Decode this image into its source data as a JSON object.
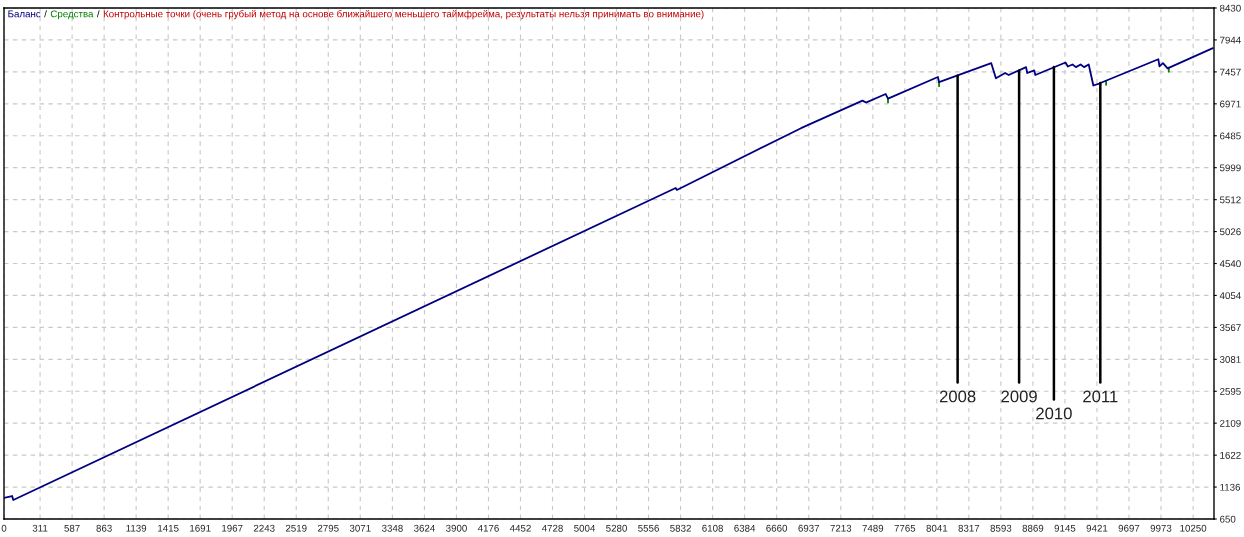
{
  "chart_data": {
    "type": "line",
    "title": "Контрольные точки (очень грубый метод на основе ближайшего меньшего таймфрейма, результаты нельзя принимать во внимание)",
    "series": [
      {
        "name": "Баланс",
        "color": "#000080",
        "x": [
          0,
          70,
          80,
          5790,
          5800,
          6870,
          7400,
          7430,
          7600,
          7620,
          8050,
          8060,
          8510,
          8550,
          8630,
          8660,
          8810,
          8820,
          8880,
          8890,
          9150,
          9170,
          9210,
          9240,
          9280,
          9310,
          9350,
          9390,
          9440,
          9950,
          9960,
          9990,
          10030,
          10420
        ],
        "values": [
          970,
          1000,
          940,
          5690,
          5660,
          6600,
          7020,
          6990,
          7120,
          7050,
          7380,
          7300,
          7590,
          7360,
          7440,
          7410,
          7530,
          7440,
          7480,
          7410,
          7600,
          7540,
          7570,
          7530,
          7570,
          7530,
          7570,
          7250,
          7280,
          7650,
          7540,
          7590,
          7510,
          7820
        ]
      },
      {
        "name": "Средства",
        "color": "#008000",
        "x": [
          7620,
          7620,
          null,
          8060,
          8060,
          null,
          9500,
          9500,
          null,
          10040,
          10040
        ],
        "values": [
          7050,
          6990,
          null,
          7300,
          7240,
          null,
          7320,
          7260,
          null,
          7520,
          7460
        ]
      }
    ],
    "xlim": [
      0,
      10430
    ],
    "xticks": [
      0,
      311,
      587,
      863,
      1139,
      1415,
      1691,
      1967,
      2243,
      2519,
      2795,
      3071,
      3348,
      3624,
      3900,
      4176,
      4452,
      4728,
      5004,
      5280,
      5556,
      5832,
      6108,
      6384,
      6660,
      6937,
      7213,
      7489,
      7765,
      8041,
      8317,
      8593,
      8869,
      9145,
      9421,
      9697,
      9973,
      10250
    ],
    "ylim": [
      650,
      8430
    ],
    "yticks": [
      650,
      1136,
      1622,
      2109,
      2595,
      3081,
      3567,
      4054,
      4540,
      5026,
      5512,
      5999,
      6485,
      6971,
      7457,
      7944,
      8430
    ],
    "grid": true,
    "legend": "top left",
    "line_style": "solid",
    "annotations": [
      "/",
      "/",
      {
        "text": "2008",
        "x": 8220,
        "y": 7400
      },
      {
        "text": "2009",
        "x": 8750,
        "y": 7480
      },
      {
        "text": "2010",
        "x": 9050,
        "y": 7530
      },
      {
        "text": "2011",
        "x": 9450,
        "y": 7290
      }
    ]
  }
}
